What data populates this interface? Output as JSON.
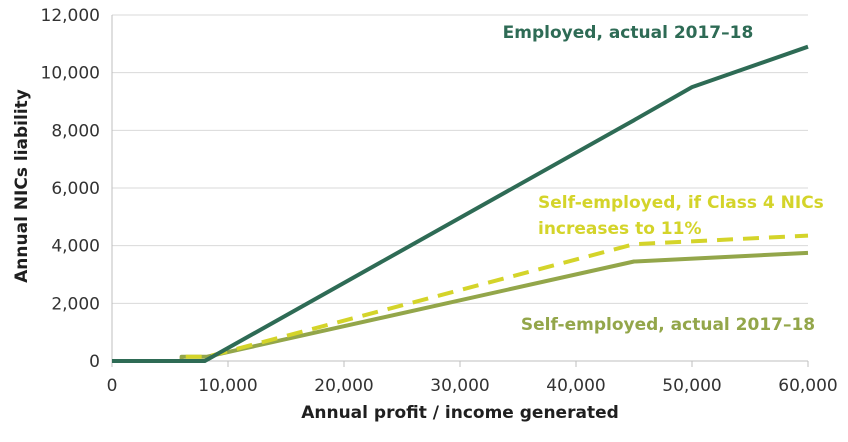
{
  "chart_data": {
    "type": "line",
    "xlabel": "Annual profit / income generated",
    "ylabel": "Annual NICs liability",
    "xlim": [
      0,
      60000
    ],
    "ylim": [
      0,
      12000
    ],
    "x_ticks": [
      "0",
      "10,000",
      "20,000",
      "30,000",
      "40,000",
      "50,000",
      "60,000"
    ],
    "y_ticks": [
      "0",
      "2,000",
      "4,000",
      "6,000",
      "8,000",
      "10,000",
      "12,000"
    ],
    "grid": "horizontal",
    "series": [
      {
        "name": "Employed, actual 2017–18",
        "color": "#2e6b55",
        "style": "solid",
        "points": [
          [
            0,
            0
          ],
          [
            8000,
            0
          ],
          [
            45000,
            8350
          ],
          [
            50000,
            9500
          ],
          [
            60000,
            10900
          ]
        ]
      },
      {
        "name": "Self-employed, if Class 4 NICs increases to 11%",
        "color": "#d4d42a",
        "style": "dashed",
        "points": [
          [
            0,
            0
          ],
          [
            6000,
            0
          ],
          [
            6000,
            150
          ],
          [
            8200,
            150
          ],
          [
            45000,
            4050
          ],
          [
            60000,
            4350
          ]
        ]
      },
      {
        "name": "Self-employed, actual 2017–18",
        "color": "#93a64a",
        "style": "solid",
        "points": [
          [
            0,
            0
          ],
          [
            6000,
            0
          ],
          [
            6000,
            150
          ],
          [
            8200,
            150
          ],
          [
            45000,
            3450
          ],
          [
            60000,
            3750
          ]
        ]
      }
    ]
  }
}
